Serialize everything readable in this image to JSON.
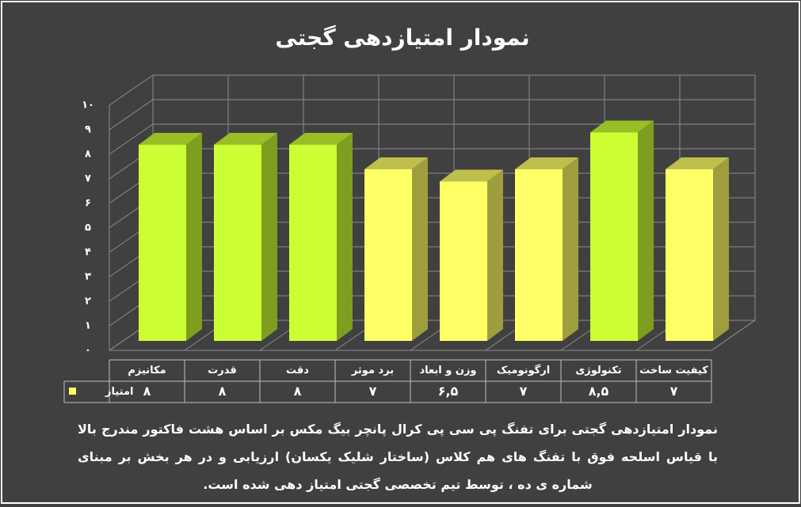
{
  "chart_data": {
    "type": "bar3d",
    "title": "نمودار امتیازدهی گجتی",
    "categories": [
      "مکانیزم",
      "قدرت",
      "دقت",
      "برد موثر",
      "وزن و ابعاد",
      "ارگونومیک",
      "تکنولوژی",
      "کیفیت ساخت"
    ],
    "series": [
      {
        "name": "امتیاز",
        "color": "#ffff66",
        "values": [
          8,
          8,
          8,
          7,
          6.5,
          7,
          8.5,
          7
        ],
        "value_labels": [
          "۸",
          "۸",
          "۸",
          "۷",
          "۶,۵",
          "۷",
          "۸,۵",
          "۷"
        ],
        "point_colors": [
          "#ccff33",
          "#ccff33",
          "#ccff33",
          "#ffff66",
          "#ffff66",
          "#ffff66",
          "#ccff33",
          "#ffff66"
        ]
      }
    ],
    "ylim": [
      0,
      10
    ],
    "yticks": [
      {
        "value": 0,
        "label": "۰"
      },
      {
        "value": 1,
        "label": "۱"
      },
      {
        "value": 2,
        "label": "۲"
      },
      {
        "value": 3,
        "label": "۳"
      },
      {
        "value": 4,
        "label": "۴"
      },
      {
        "value": 5,
        "label": "۵"
      },
      {
        "value": 6,
        "label": "۶"
      },
      {
        "value": 7,
        "label": "۷"
      },
      {
        "value": 8,
        "label": "۸"
      },
      {
        "value": 9,
        "label": "۹"
      },
      {
        "value": 10,
        "label": "۱۰"
      }
    ],
    "grid": true,
    "caption": "نمودار امتیازدهی گجتی برای تفنگ پی سی پی کرال پانچر بیگ مکس بر اساس هشت فاکتور مندرج بالا با قیاس اسلحه فوق با تفنگ های هم کلاس (ساختار شلیک یکسان) ارزیابی و در هر بخش بر مبنای شماره ی ده ، توسط تیم تخصصی گجتی امتیاز دهی شده است."
  }
}
